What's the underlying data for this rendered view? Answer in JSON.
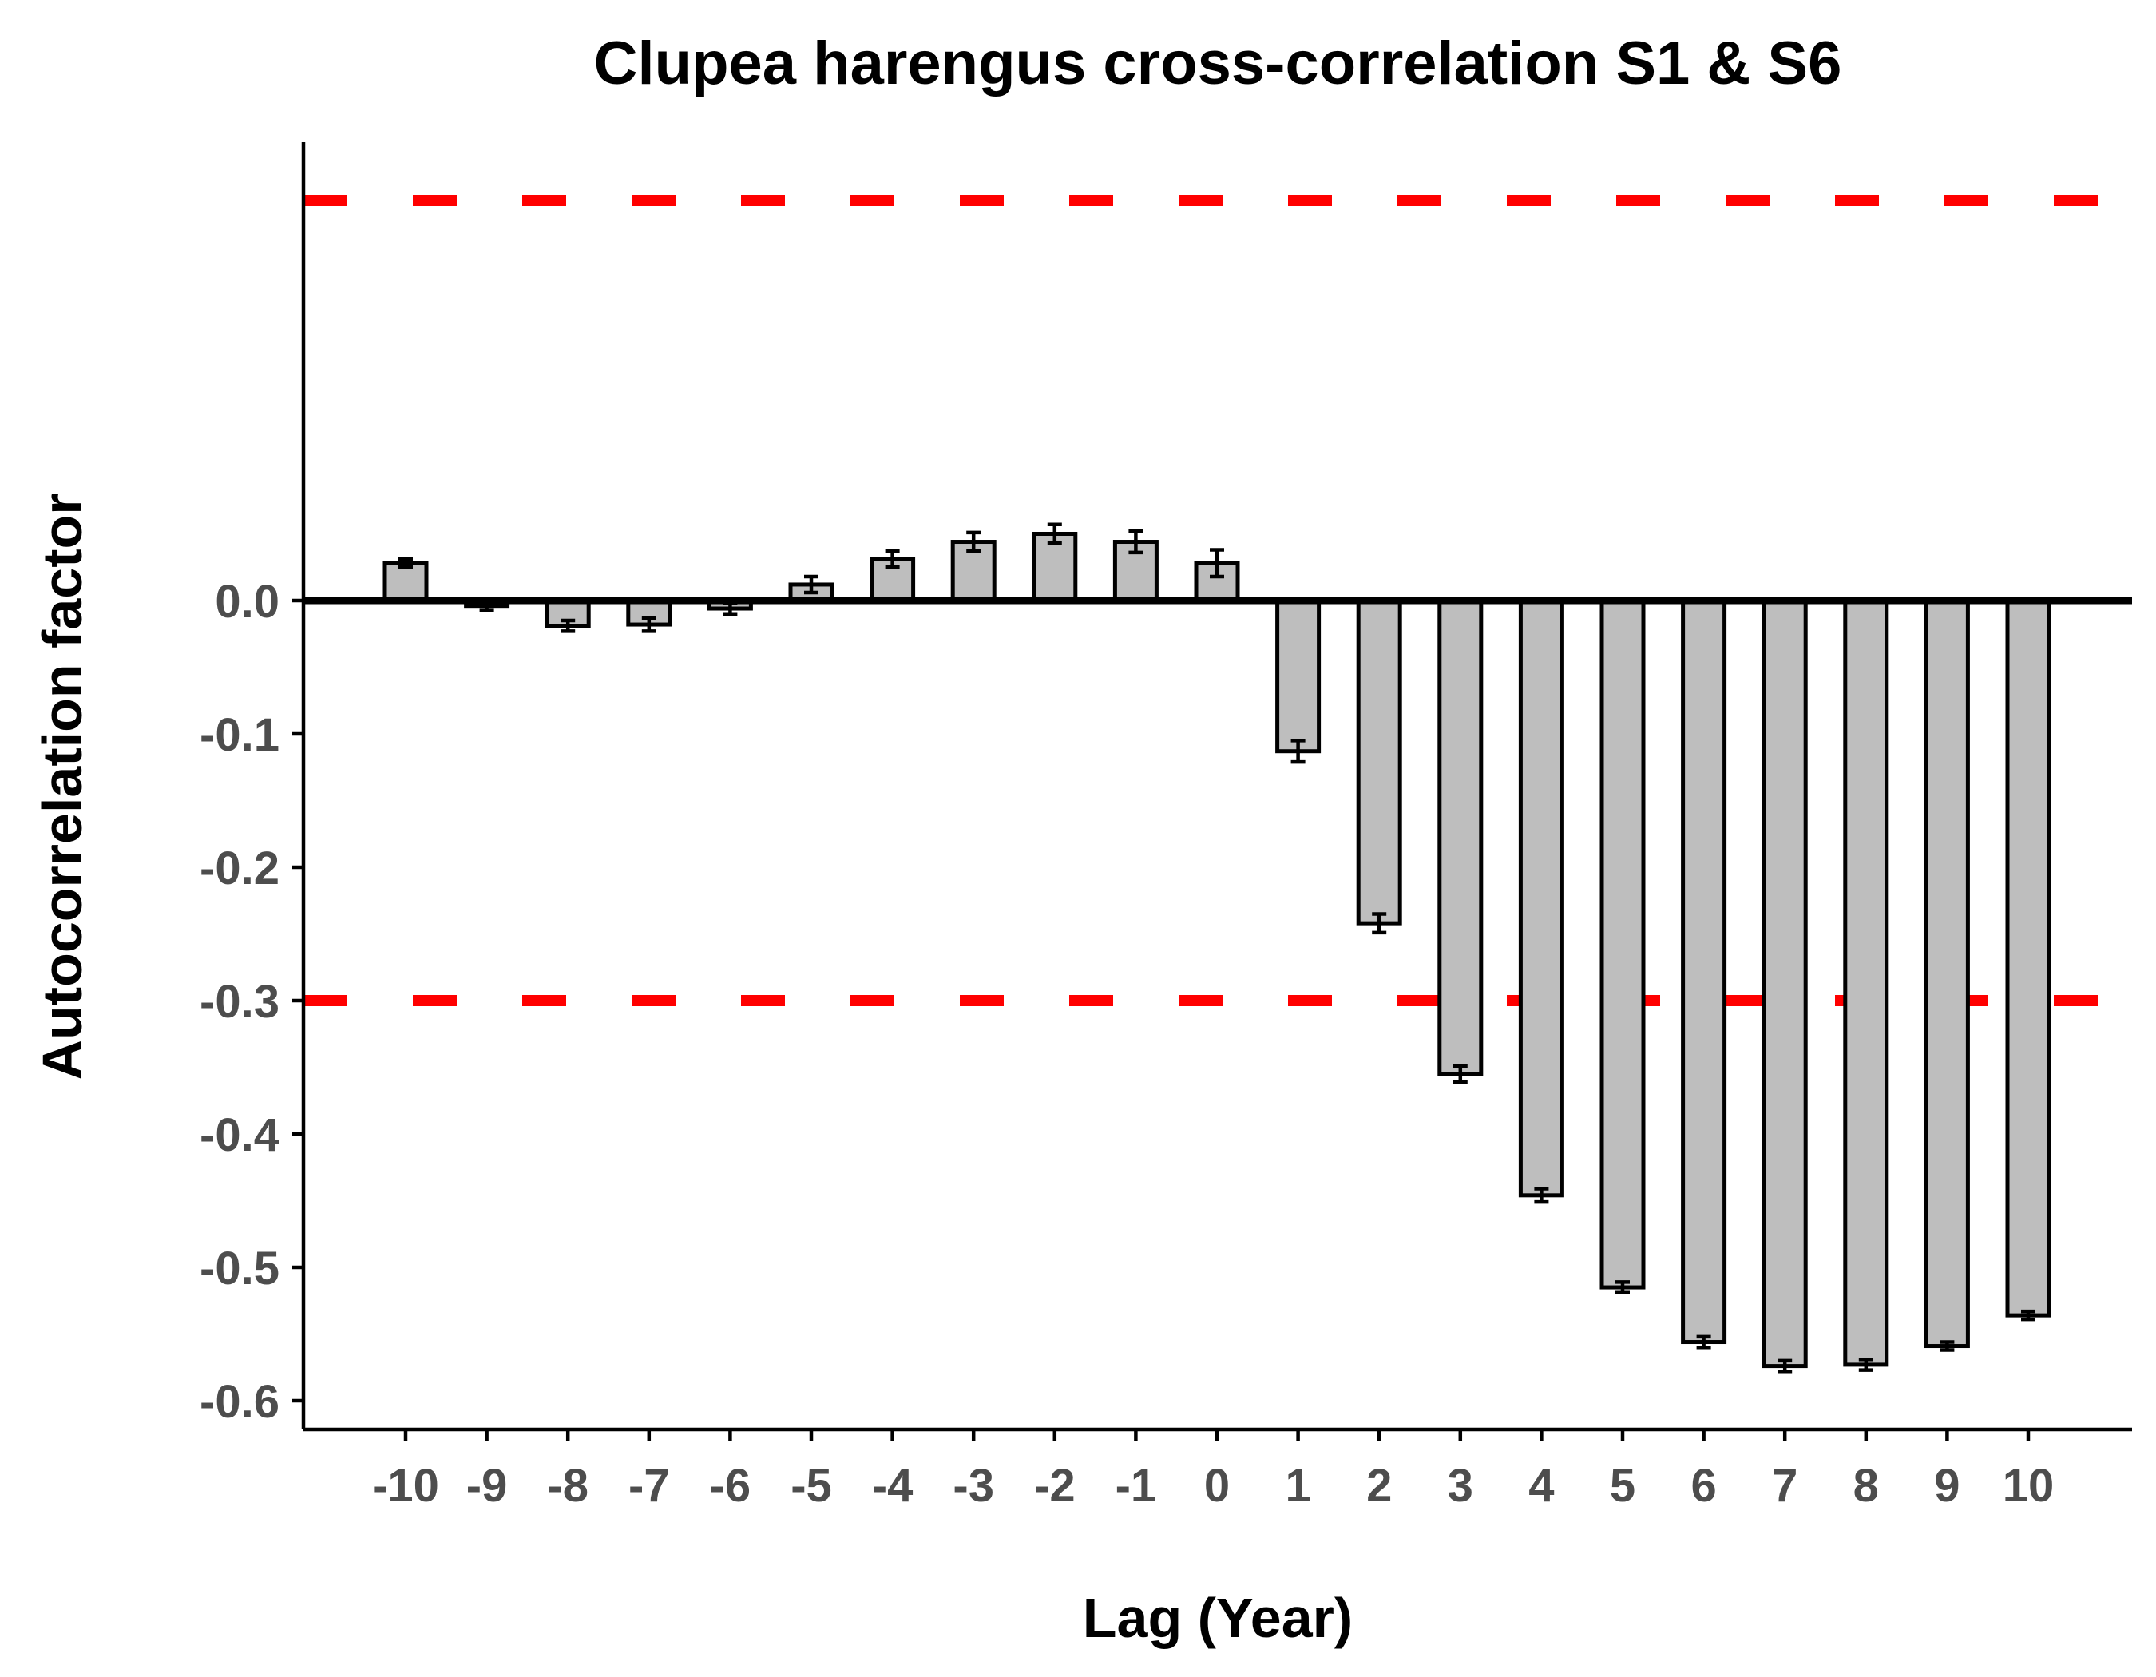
{
  "chart_data": {
    "type": "bar",
    "title": "Clupea harengus cross-correlation S1 & S6",
    "xlabel": "Lag (Year)",
    "ylabel": "Autocorrelation factor",
    "categories": [
      "-10",
      "-9",
      "-8",
      "-7",
      "-6",
      "-5",
      "-4",
      "-3",
      "-2",
      "-1",
      "0",
      "1",
      "2",
      "3",
      "4",
      "5",
      "6",
      "7",
      "8",
      "9",
      "10"
    ],
    "series": [
      {
        "values": [
          0.028,
          -0.004,
          -0.019,
          -0.018,
          -0.006,
          0.012,
          0.031,
          0.044,
          0.05,
          0.044,
          0.028,
          -0.113,
          -0.242,
          -0.355,
          -0.446,
          -0.515,
          -0.556,
          -0.574,
          -0.573,
          -0.559,
          -0.536
        ],
        "error": [
          0.003,
          0.003,
          0.004,
          0.005,
          0.004,
          0.006,
          0.006,
          0.007,
          0.007,
          0.008,
          0.01,
          0.008,
          0.007,
          0.006,
          0.005,
          0.004,
          0.004,
          0.004,
          0.004,
          0.003,
          0.003
        ]
      }
    ],
    "reference_lines": [
      0.3,
      -0.3
    ],
    "ylim": [
      -0.62,
      0.34
    ],
    "yticks": [
      "0.0",
      "-0.1",
      "-0.2",
      "-0.3",
      "-0.4",
      "-0.5",
      "-0.6"
    ],
    "ytick_values": [
      0.0,
      -0.1,
      -0.2,
      -0.3,
      -0.4,
      -0.5,
      -0.6
    ],
    "grid": false,
    "legend": "none",
    "colors": {
      "bar_fill": "#bebebe",
      "bar_stroke": "#000000",
      "reference_line": "#ff0000",
      "zero_line": "#000000",
      "tick_label": "#4d4d4d"
    }
  }
}
